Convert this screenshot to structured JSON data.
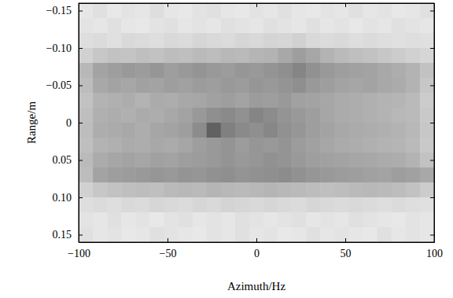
{
  "chart_data": {
    "type": "heatmap",
    "x_label": "Azimuth/Hz",
    "y_label": "Range/m",
    "xlim": [
      -100,
      100
    ],
    "xticks": [
      {
        "value": -100,
        "label": "−100"
      },
      {
        "value": -50,
        "label": "−50"
      },
      0,
      50,
      100
    ],
    "ylim": [
      -0.16,
      0.16
    ],
    "yticks": [
      {
        "value": -0.15,
        "label": "−0.15"
      },
      {
        "value": -0.1,
        "label": "−0.10"
      },
      {
        "value": -0.05,
        "label": "−0.05"
      },
      0,
      0.05,
      {
        "value": 0.1,
        "label": "0.10"
      },
      0.15
    ],
    "x": [
      -96,
      -88,
      -80,
      -72,
      -64,
      -56,
      -48,
      -40,
      -32,
      -24,
      -16,
      -8,
      0,
      8,
      16,
      24,
      32,
      40,
      48,
      56,
      64,
      72,
      80,
      88,
      96
    ],
    "y": [
      -0.15,
      -0.13,
      -0.11,
      -0.09,
      -0.07,
      -0.05,
      -0.03,
      -0.01,
      0.01,
      0.03,
      0.05,
      0.07,
      0.09,
      0.11,
      0.13,
      0.15
    ],
    "cells": [
      [
        0.1,
        0.12,
        0.09,
        0.11,
        0.1,
        0.13,
        0.1,
        0.09,
        0.11,
        0.12,
        0.1,
        0.09,
        0.11,
        0.1,
        0.12,
        0.1,
        0.09,
        0.11,
        0.1,
        0.12,
        0.1,
        0.11,
        0.09,
        0.1,
        0.12
      ],
      [
        0.11,
        0.1,
        0.12,
        0.1,
        0.09,
        0.11,
        0.12,
        0.1,
        0.11,
        0.1,
        0.12,
        0.11,
        0.1,
        0.12,
        0.11,
        0.1,
        0.12,
        0.1,
        0.11,
        0.09,
        0.11,
        0.1,
        0.12,
        0.11,
        0.1
      ],
      [
        0.13,
        0.14,
        0.12,
        0.15,
        0.14,
        0.13,
        0.15,
        0.14,
        0.16,
        0.15,
        0.14,
        0.16,
        0.15,
        0.17,
        0.16,
        0.18,
        0.15,
        0.14,
        0.15,
        0.13,
        0.14,
        0.13,
        0.12,
        0.13,
        0.12
      ],
      [
        0.18,
        0.22,
        0.24,
        0.23,
        0.25,
        0.24,
        0.26,
        0.25,
        0.27,
        0.26,
        0.28,
        0.27,
        0.29,
        0.3,
        0.34,
        0.38,
        0.35,
        0.3,
        0.27,
        0.25,
        0.24,
        0.22,
        0.2,
        0.18,
        0.16
      ],
      [
        0.28,
        0.36,
        0.38,
        0.4,
        0.39,
        0.41,
        0.38,
        0.4,
        0.42,
        0.4,
        0.39,
        0.41,
        0.4,
        0.42,
        0.44,
        0.48,
        0.43,
        0.4,
        0.38,
        0.37,
        0.36,
        0.34,
        0.32,
        0.3,
        0.24
      ],
      [
        0.26,
        0.34,
        0.36,
        0.35,
        0.37,
        0.36,
        0.38,
        0.37,
        0.39,
        0.38,
        0.4,
        0.39,
        0.41,
        0.4,
        0.42,
        0.44,
        0.4,
        0.38,
        0.36,
        0.35,
        0.36,
        0.34,
        0.33,
        0.3,
        0.22
      ],
      [
        0.24,
        0.3,
        0.31,
        0.32,
        0.3,
        0.33,
        0.32,
        0.34,
        0.35,
        0.37,
        0.38,
        0.36,
        0.39,
        0.38,
        0.4,
        0.37,
        0.36,
        0.35,
        0.33,
        0.32,
        0.31,
        0.3,
        0.29,
        0.27,
        0.2
      ],
      [
        0.25,
        0.31,
        0.32,
        0.31,
        0.33,
        0.32,
        0.34,
        0.36,
        0.4,
        0.44,
        0.46,
        0.43,
        0.48,
        0.45,
        0.42,
        0.4,
        0.38,
        0.35,
        0.33,
        0.32,
        0.31,
        0.3,
        0.28,
        0.27,
        0.21
      ],
      [
        0.26,
        0.32,
        0.33,
        0.34,
        0.32,
        0.35,
        0.36,
        0.38,
        0.45,
        0.62,
        0.5,
        0.46,
        0.44,
        0.47,
        0.43,
        0.41,
        0.38,
        0.36,
        0.34,
        0.33,
        0.32,
        0.31,
        0.3,
        0.28,
        0.22
      ],
      [
        0.25,
        0.3,
        0.31,
        0.33,
        0.32,
        0.34,
        0.33,
        0.35,
        0.38,
        0.4,
        0.42,
        0.39,
        0.41,
        0.4,
        0.42,
        0.39,
        0.37,
        0.35,
        0.33,
        0.32,
        0.31,
        0.3,
        0.29,
        0.27,
        0.21
      ],
      [
        0.27,
        0.33,
        0.35,
        0.36,
        0.35,
        0.37,
        0.36,
        0.38,
        0.39,
        0.4,
        0.42,
        0.4,
        0.41,
        0.43,
        0.42,
        0.4,
        0.38,
        0.37,
        0.36,
        0.35,
        0.34,
        0.33,
        0.32,
        0.3,
        0.24
      ],
      [
        0.26,
        0.36,
        0.38,
        0.39,
        0.4,
        0.41,
        0.4,
        0.42,
        0.41,
        0.43,
        0.44,
        0.42,
        0.43,
        0.44,
        0.45,
        0.43,
        0.41,
        0.4,
        0.39,
        0.38,
        0.37,
        0.36,
        0.38,
        0.37,
        0.34
      ],
      [
        0.18,
        0.22,
        0.24,
        0.25,
        0.26,
        0.25,
        0.27,
        0.28,
        0.27,
        0.29,
        0.28,
        0.27,
        0.28,
        0.29,
        0.28,
        0.27,
        0.26,
        0.25,
        0.26,
        0.27,
        0.28,
        0.27,
        0.26,
        0.24,
        0.2
      ],
      [
        0.13,
        0.14,
        0.13,
        0.15,
        0.14,
        0.16,
        0.15,
        0.14,
        0.16,
        0.15,
        0.17,
        0.16,
        0.15,
        0.16,
        0.15,
        0.14,
        0.16,
        0.15,
        0.14,
        0.15,
        0.14,
        0.13,
        0.14,
        0.13,
        0.12
      ],
      [
        0.11,
        0.1,
        0.12,
        0.1,
        0.11,
        0.09,
        0.11,
        0.12,
        0.1,
        0.11,
        0.1,
        0.12,
        0.11,
        0.1,
        0.11,
        0.12,
        0.1,
        0.11,
        0.1,
        0.12,
        0.11,
        0.1,
        0.09,
        0.11,
        0.1
      ],
      [
        0.12,
        0.1,
        0.11,
        0.09,
        0.1,
        0.12,
        0.11,
        0.1,
        0.09,
        0.11,
        0.1,
        0.12,
        0.1,
        0.11,
        0.09,
        0.1,
        0.12,
        0.1,
        0.11,
        0.1,
        0.09,
        0.12,
        0.1,
        0.11,
        0.1
      ]
    ]
  }
}
